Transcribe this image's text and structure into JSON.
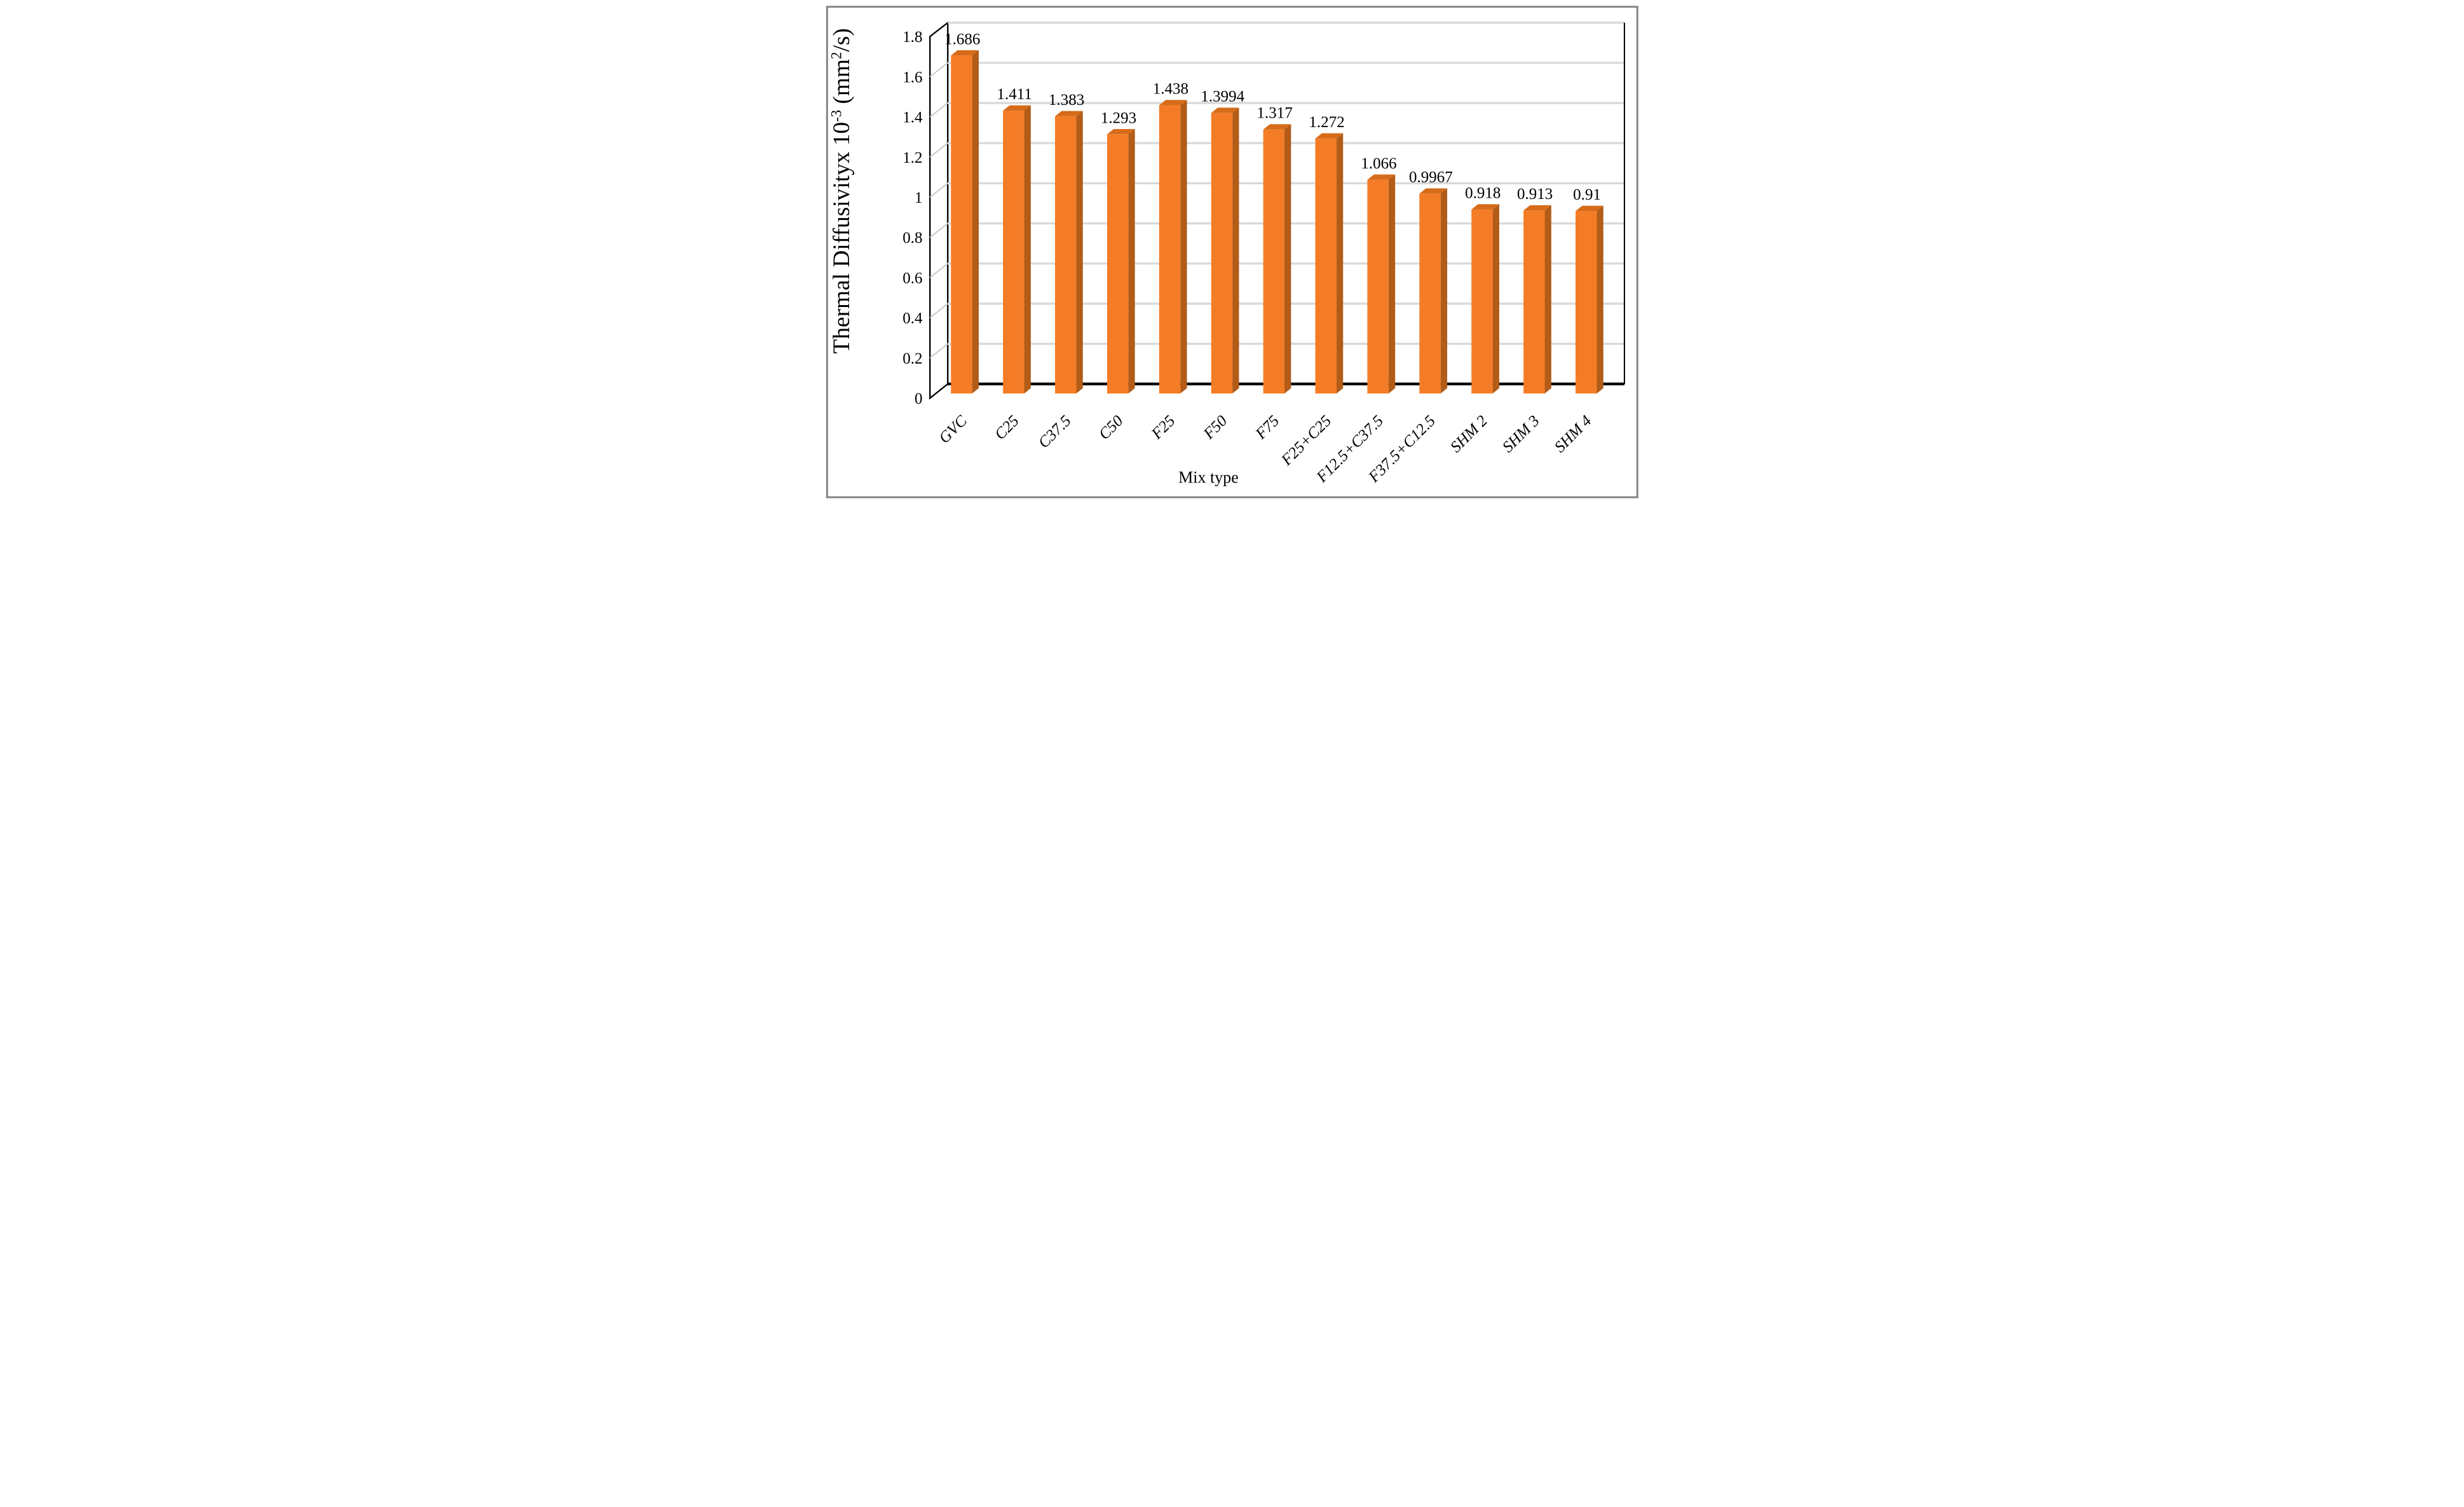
{
  "figure": {
    "background": "#FFFFFF",
    "frame_color": "#858585"
  },
  "chart_data": {
    "type": "bar",
    "effect": "3d",
    "title": "",
    "xlabel": "Mix type",
    "ylabel": "Thermal Diffusivityx 10-3 (mm2/s)",
    "ylabel_segments": [
      {
        "t": "Thermal Diffusivityx 10",
        "sup": false
      },
      {
        "t": "-3",
        "sup": true
      },
      {
        "t": " (mm",
        "sup": false
      },
      {
        "t": "2",
        "sup": true
      },
      {
        "t": "/s)",
        "sup": false
      }
    ],
    "categories": [
      "GVC",
      "C25",
      "C37.5",
      "C50",
      "F25",
      "F50",
      "F75",
      "F25+C25",
      "F12.5+C37.5",
      "F37.5+C12.5",
      "SHM 2",
      "SHM 3",
      "SHM 4"
    ],
    "values": [
      1.686,
      1.411,
      1.383,
      1.293,
      1.438,
      1.3994,
      1.317,
      1.272,
      1.066,
      0.9967,
      0.918,
      0.913,
      0.91
    ],
    "value_labels": [
      "1.686",
      "1.411",
      "1.383",
      "1.293",
      "1.438",
      "1.3994",
      "1.317",
      "1.272",
      "1.066",
      "0.9967",
      "0.918",
      "0.913",
      "0.91"
    ],
    "ylim": [
      0,
      1.8
    ],
    "ytick_interval": 0.2,
    "ytick_labels": [
      "0",
      "0.2",
      "0.4",
      "0.6",
      "0.8",
      "1",
      "1.2",
      "1.4",
      "1.6",
      "1.8"
    ],
    "grid": true,
    "legend": "none",
    "bar_colors": {
      "front": "#F47C26",
      "top": "#D66C19",
      "side": "#B25C18"
    },
    "gridline_color": "#D9D9D9",
    "wall_tick_color": "#C9C9C9",
    "axis_color": "#000000",
    "text_color": "#000000"
  }
}
